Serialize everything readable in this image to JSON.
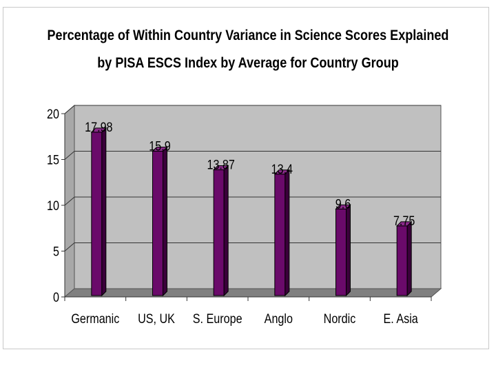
{
  "chart_data": {
    "type": "bar",
    "title_lines": [
      "Percentage of Within Country Variance in Science Scores Explained",
      "by PISA ESCS Index by Average for Country Group"
    ],
    "categories": [
      "Germanic",
      "US, UK",
      "S. Europe",
      "Anglo",
      "Nordic",
      "E. Asia"
    ],
    "values": [
      17.98,
      15.9,
      13.87,
      13.4,
      9.6,
      7.75
    ],
    "data_labels": [
      "17.98",
      "15.9",
      "13.87",
      "13.4",
      "9.6",
      "7.75"
    ],
    "y_ticks": [
      "0",
      "5",
      "10",
      "15",
      "20"
    ],
    "ylim": [
      0,
      20
    ],
    "grid": true,
    "legend": "none",
    "colors": {
      "bar_front": "#6a0a6a",
      "bar_side": "#3a003a",
      "bar_top": "#8a2a8a",
      "wall": "#c0c0c0",
      "floor": "#808080"
    }
  }
}
